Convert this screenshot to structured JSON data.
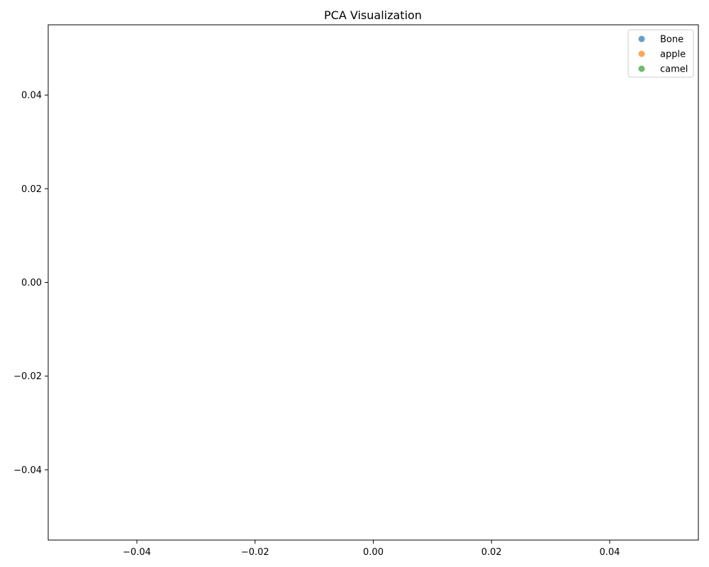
{
  "chart_data": {
    "type": "scatter",
    "title": "PCA Visualization",
    "xlabel": "",
    "ylabel": "",
    "xlim": [
      -0.055,
      0.055
    ],
    "ylim": [
      -0.055,
      0.055
    ],
    "x_ticks": [
      -0.04,
      -0.02,
      0.0,
      0.02,
      0.04
    ],
    "y_ticks": [
      -0.04,
      -0.02,
      0.0,
      0.02,
      0.04
    ],
    "x_tick_labels": [
      "−0.04",
      "−0.02",
      "0.00",
      "0.02",
      "0.04"
    ],
    "y_tick_labels": [
      "−0.04",
      "−0.02",
      "0.00",
      "0.02",
      "0.04"
    ],
    "grid": false,
    "legend_position": "top-right",
    "series": [
      {
        "name": "Bone",
        "color": "#1f77b4",
        "points": []
      },
      {
        "name": "apple",
        "color": "#ff7f0e",
        "points": []
      },
      {
        "name": "camel",
        "color": "#2ca02c",
        "points": []
      }
    ]
  }
}
